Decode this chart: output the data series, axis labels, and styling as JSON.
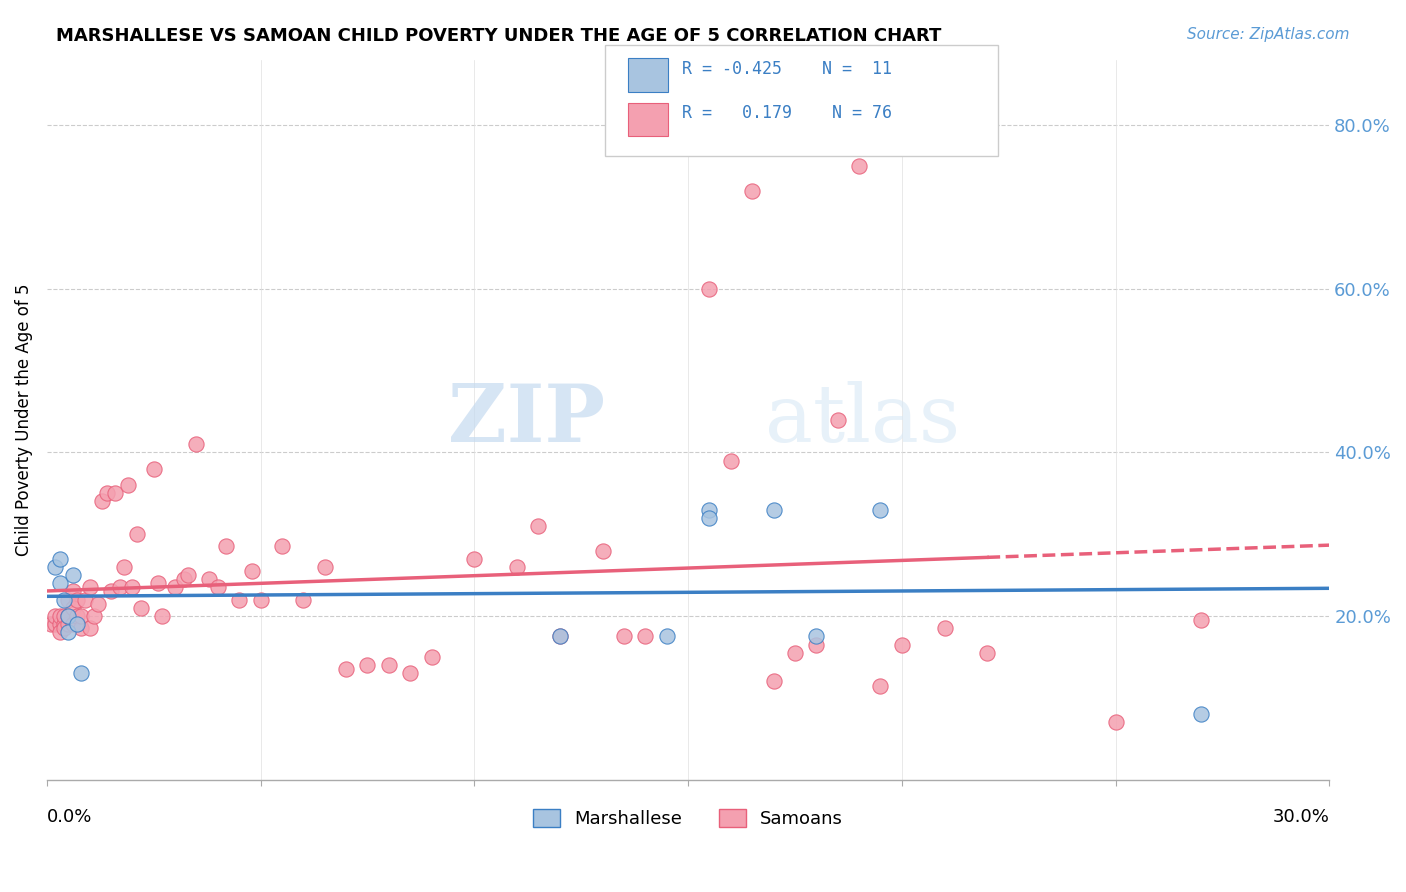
{
  "title": "MARSHALLESE VS SAMOAN CHILD POVERTY UNDER THE AGE OF 5 CORRELATION CHART",
  "source": "Source: ZipAtlas.com",
  "ylabel": "Child Poverty Under the Age of 5",
  "right_yticks": [
    0.2,
    0.4,
    0.6,
    0.8
  ],
  "right_yticklabels": [
    "20.0%",
    "40.0%",
    "60.0%",
    "80.0%"
  ],
  "xlim": [
    0.0,
    0.3
  ],
  "ylim": [
    0.0,
    0.88
  ],
  "marshallese_color": "#a8c4e0",
  "samoans_color": "#f4a0b0",
  "marshallese_line_color": "#3b7fc4",
  "samoans_line_color": "#e8607a",
  "watermark_zip": "ZIP",
  "watermark_atlas": "atlas",
  "marshallese_x": [
    0.002,
    0.003,
    0.003,
    0.004,
    0.005,
    0.005,
    0.006,
    0.007,
    0.008,
    0.12,
    0.145,
    0.155,
    0.155,
    0.17,
    0.18,
    0.195,
    0.27
  ],
  "marshallese_y": [
    0.26,
    0.27,
    0.24,
    0.22,
    0.2,
    0.18,
    0.25,
    0.19,
    0.13,
    0.175,
    0.175,
    0.33,
    0.32,
    0.33,
    0.175,
    0.33,
    0.08
  ],
  "samoans_x": [
    0.001,
    0.002,
    0.002,
    0.003,
    0.003,
    0.003,
    0.004,
    0.004,
    0.004,
    0.005,
    0.005,
    0.005,
    0.006,
    0.006,
    0.006,
    0.007,
    0.007,
    0.008,
    0.008,
    0.009,
    0.01,
    0.01,
    0.011,
    0.012,
    0.013,
    0.014,
    0.015,
    0.016,
    0.017,
    0.018,
    0.019,
    0.02,
    0.021,
    0.022,
    0.025,
    0.026,
    0.027,
    0.03,
    0.032,
    0.033,
    0.035,
    0.038,
    0.04,
    0.042,
    0.045,
    0.048,
    0.05,
    0.055,
    0.06,
    0.065,
    0.07,
    0.075,
    0.08,
    0.085,
    0.09,
    0.1,
    0.11,
    0.115,
    0.12,
    0.13,
    0.135,
    0.14,
    0.155,
    0.16,
    0.165,
    0.17,
    0.175,
    0.18,
    0.185,
    0.19,
    0.195,
    0.2,
    0.21,
    0.22,
    0.25,
    0.27
  ],
  "samoans_y": [
    0.19,
    0.19,
    0.2,
    0.19,
    0.2,
    0.18,
    0.19,
    0.2,
    0.185,
    0.19,
    0.2,
    0.22,
    0.19,
    0.21,
    0.23,
    0.2,
    0.22,
    0.185,
    0.2,
    0.22,
    0.185,
    0.235,
    0.2,
    0.215,
    0.34,
    0.35,
    0.23,
    0.35,
    0.235,
    0.26,
    0.36,
    0.235,
    0.3,
    0.21,
    0.38,
    0.24,
    0.2,
    0.235,
    0.245,
    0.25,
    0.41,
    0.245,
    0.235,
    0.285,
    0.22,
    0.255,
    0.22,
    0.285,
    0.22,
    0.26,
    0.135,
    0.14,
    0.14,
    0.13,
    0.15,
    0.27,
    0.26,
    0.31,
    0.175,
    0.28,
    0.175,
    0.175,
    0.6,
    0.39,
    0.72,
    0.12,
    0.155,
    0.165,
    0.44,
    0.75,
    0.115,
    0.165,
    0.185,
    0.155,
    0.07,
    0.195
  ]
}
